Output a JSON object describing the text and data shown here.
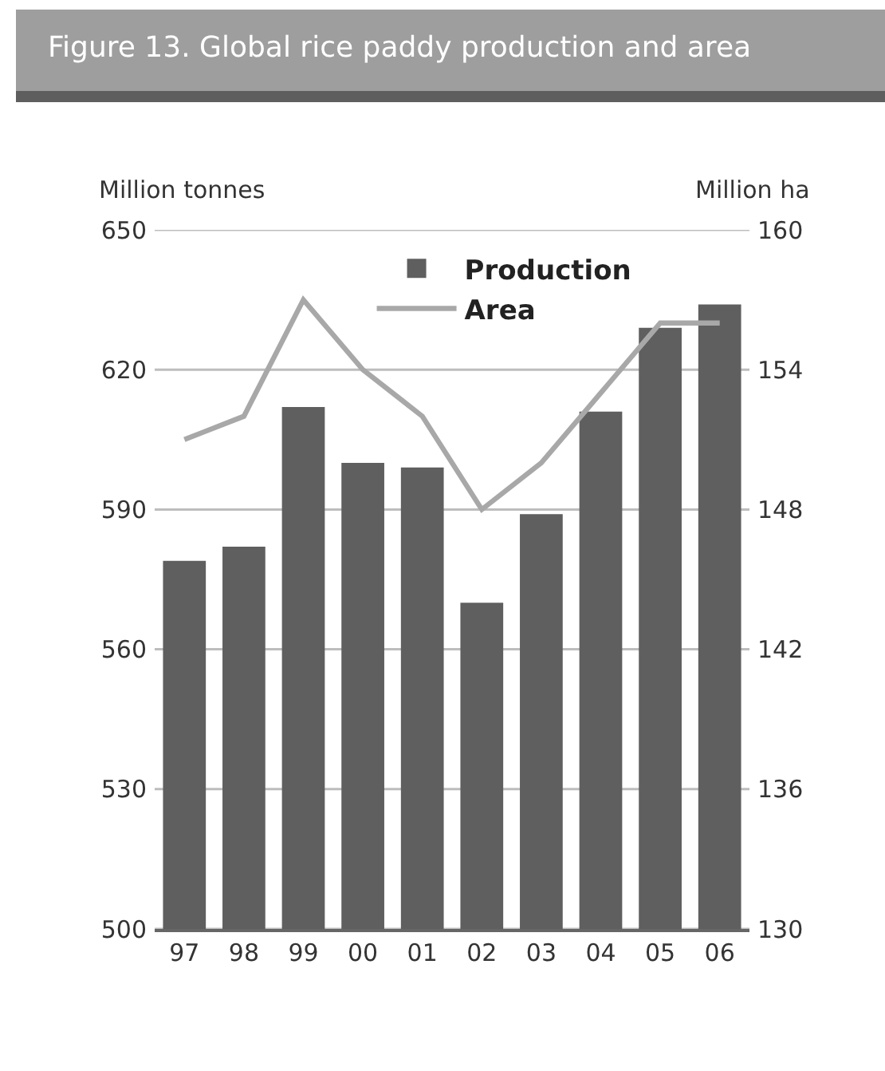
{
  "chart_data": {
    "type": "bar",
    "title": "Figure 13. Global rice paddy production and area",
    "ylabel": "Million tonnes",
    "y2label": "Million ha",
    "categories": [
      "97",
      "98",
      "99",
      "00",
      "01",
      "02",
      "03",
      "04",
      "05",
      "06"
    ],
    "series": [
      {
        "name": "Production",
        "color": "#5f5f5f",
        "values": [
          579,
          582,
          612,
          600,
          599,
          570,
          589,
          611,
          629,
          634
        ]
      },
      {
        "name": "Area",
        "type": "line",
        "axis": "y2",
        "color": "#a8a8a8",
        "values": [
          151,
          152,
          157,
          154,
          152,
          148,
          150,
          153,
          156,
          156
        ]
      }
    ],
    "ylim": [
      500,
      650
    ],
    "yticks": [
      500,
      530,
      560,
      590,
      620,
      650
    ],
    "y2lim": [
      130,
      160
    ],
    "y2ticks": [
      130,
      136,
      142,
      148,
      154,
      160
    ],
    "grid": "y",
    "legend": "top",
    "marker": "none",
    "line_style": "solid"
  }
}
